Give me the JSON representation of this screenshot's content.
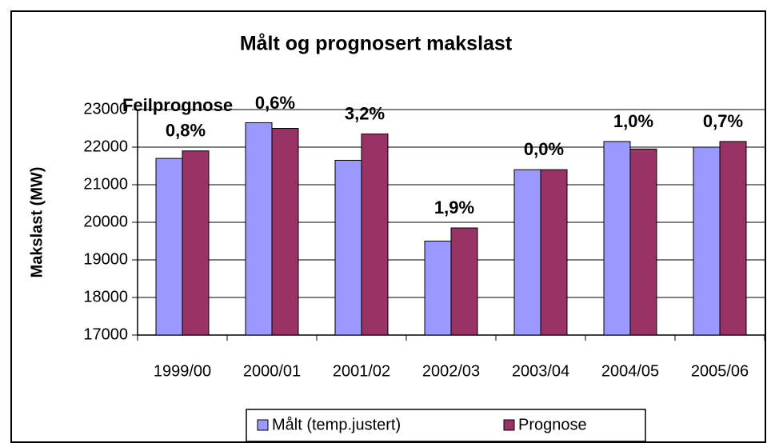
{
  "chart_data": {
    "type": "bar",
    "title": "Målt og prognosert makslast",
    "y_label": "Makslast (MW)",
    "annotation_title": "Feilprognose",
    "categories": [
      "1999/00",
      "2000/01",
      "2001/02",
      "2002/03",
      "2003/04",
      "2004/05",
      "2005/06"
    ],
    "annotations": [
      "0,8%",
      "0,6%",
      "3,2%",
      "1,9%",
      "0,0%",
      "1,0%",
      "0,7%"
    ],
    "series": [
      {
        "name": "Målt (temp.justert)",
        "color": "#9999ff",
        "values": [
          21700,
          22650,
          21650,
          19500,
          21400,
          22150,
          22000
        ]
      },
      {
        "name": "Prognose",
        "color": "#993366",
        "values": [
          21900,
          22500,
          22350,
          19850,
          21400,
          21950,
          22150
        ]
      }
    ],
    "ylim": [
      17000,
      23000
    ],
    "yticks": [
      17000,
      18000,
      19000,
      20000,
      21000,
      22000,
      23000
    ],
    "grid": true,
    "legend": "bottom"
  }
}
